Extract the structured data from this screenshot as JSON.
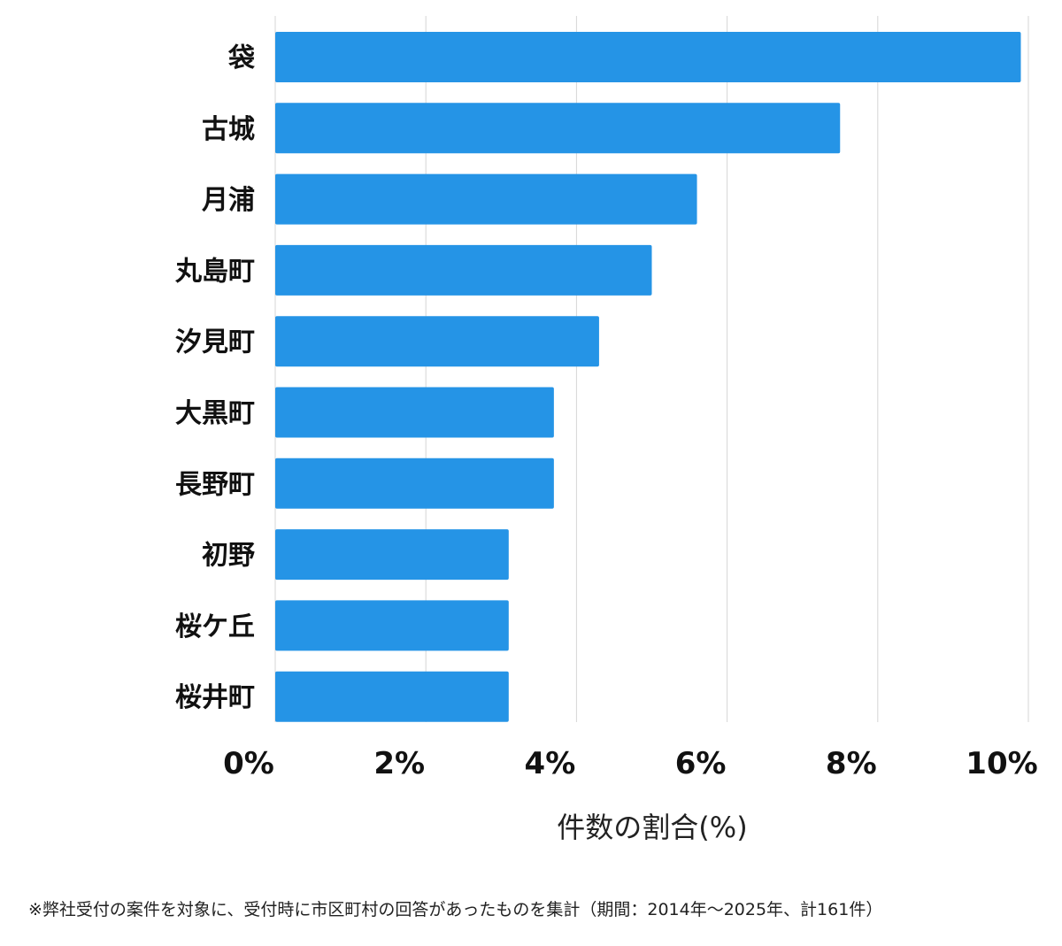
{
  "chart_data": {
    "type": "bar",
    "orientation": "horizontal",
    "categories": [
      "袋",
      "古城",
      "月浦",
      "丸島町",
      "汐見町",
      "大黒町",
      "長野町",
      "初野",
      "桜ケ丘",
      "桜井町"
    ],
    "values": [
      9.9,
      7.5,
      5.6,
      5.0,
      4.3,
      3.7,
      3.7,
      3.1,
      3.1,
      3.1
    ],
    "xlabel": "件数の割合(%)",
    "ylabel": "",
    "xlim": [
      0,
      10
    ],
    "x_ticks": [
      0,
      2,
      4,
      6,
      8,
      10
    ],
    "x_tick_labels": [
      "0%",
      "2%",
      "4%",
      "6%",
      "8%",
      "10%"
    ],
    "grid": "vertical",
    "bar_color": "#2594e6"
  },
  "footnote": "※弊社受付の案件を対象に、受付時に市区町村の回答があったものを集計（期間：2014年～2025年、計161件）"
}
